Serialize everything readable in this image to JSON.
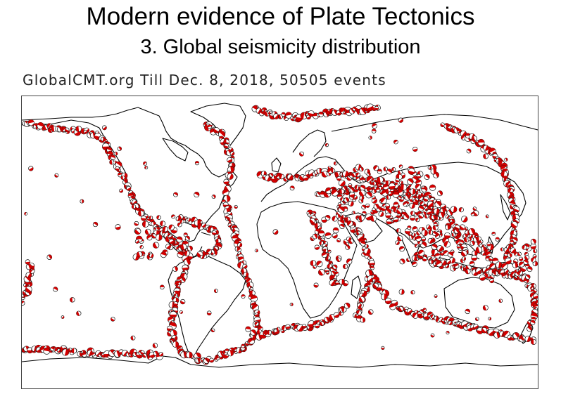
{
  "slide": {
    "title": "Modern evidence of Plate Tectonics",
    "subtitle": "3. Global seismicity distribution"
  },
  "map": {
    "caption": "GlobalCMT.org Till Dec. 8, 2018, 50505 events",
    "projection": "world map, Pacific-split equirectangular",
    "colors": {
      "coastline": "#000000",
      "beachball_fill": "#d40000",
      "beachball_light": "#ffffff",
      "beachball_outline": "#111111"
    },
    "belts": [
      "Aleutian and Alaska",
      "North American west coast",
      "Central America and Caribbean",
      "Andes (South America west coast)",
      "South Sandwich arc",
      "Mid-Atlantic Ridge",
      "Southwest Indian Ridge",
      "Carlsberg and Central Indian Ridge",
      "Southeast Indian Ridge",
      "Alpine-Himalayan belt",
      "East African Rift",
      "Japan, Kuril and Kamchatka arcs",
      "Philippines, Indonesia and New Guinea",
      "Tonga and Kermadec",
      "Pacific-Antarctic Ridge",
      "Arctic ridges"
    ]
  }
}
